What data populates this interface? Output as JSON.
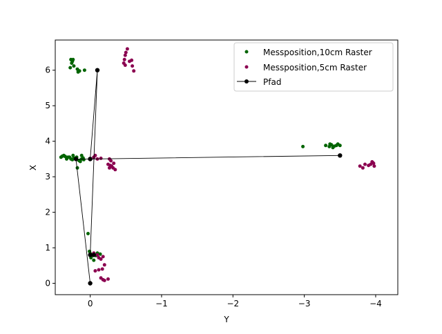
{
  "chart_data": {
    "type": "scatter",
    "xlabel": "Y",
    "ylabel": "X",
    "xlim": [
      0.49,
      -4.31
    ],
    "ylim": [
      -0.32,
      6.85
    ],
    "xticks": [
      0,
      -1,
      -2,
      -3,
      -4
    ],
    "xtick_labels": [
      "0",
      "−1",
      "−2",
      "−3",
      "−4"
    ],
    "yticks": [
      0,
      1,
      2,
      3,
      4,
      5,
      6
    ],
    "ytick_labels": [
      "0",
      "1",
      "2",
      "3",
      "4",
      "5",
      "6"
    ],
    "grid": false,
    "legend_position": "top-right",
    "series": [
      {
        "name": "Messposition,10cm Raster",
        "kind": "scatter",
        "color": "#006400",
        "points": [
          [
            0.27,
            6.3
          ],
          [
            0.24,
            6.3
          ],
          [
            0.25,
            6.25
          ],
          [
            0.26,
            6.2
          ],
          [
            0.23,
            6.12
          ],
          [
            0.28,
            6.07
          ],
          [
            0.18,
            6.03
          ],
          [
            0.15,
            5.98
          ],
          [
            0.08,
            6.0
          ],
          [
            0.17,
            5.95
          ],
          [
            0.41,
            3.55
          ],
          [
            0.39,
            3.58
          ],
          [
            0.37,
            3.6
          ],
          [
            0.35,
            3.57
          ],
          [
            0.33,
            3.5
          ],
          [
            0.31,
            3.55
          ],
          [
            0.29,
            3.55
          ],
          [
            0.27,
            3.5
          ],
          [
            0.25,
            3.48
          ],
          [
            0.23,
            3.53
          ],
          [
            0.21,
            3.51
          ],
          [
            0.19,
            3.55
          ],
          [
            0.16,
            3.46
          ],
          [
            0.14,
            3.43
          ],
          [
            0.12,
            3.5
          ],
          [
            0.1,
            3.53
          ],
          [
            0.18,
            3.25
          ],
          [
            0.12,
            3.6
          ],
          [
            0.24,
            3.6
          ],
          [
            0.09,
            3.48
          ],
          [
            0.03,
            1.4
          ],
          [
            0.01,
            0.9
          ],
          [
            0.0,
            0.84
          ],
          [
            -0.05,
            0.82
          ],
          [
            -0.1,
            0.85
          ],
          [
            -0.14,
            0.82
          ],
          [
            -0.03,
            0.78
          ],
          [
            -0.05,
            0.65
          ],
          [
            -0.01,
            0.72
          ],
          [
            -0.08,
            0.78
          ],
          [
            -2.98,
            3.85
          ],
          [
            -3.3,
            3.88
          ],
          [
            -3.35,
            3.85
          ],
          [
            -3.38,
            3.9
          ],
          [
            -3.42,
            3.86
          ],
          [
            -3.45,
            3.88
          ],
          [
            -3.47,
            3.92
          ],
          [
            -3.5,
            3.88
          ],
          [
            -3.4,
            3.82
          ],
          [
            -3.36,
            3.92
          ]
        ]
      },
      {
        "name": "Messposition,5cm Raster",
        "kind": "scatter",
        "color": "#8b0050",
        "points": [
          [
            -0.52,
            6.6
          ],
          [
            -0.5,
            6.5
          ],
          [
            -0.49,
            6.42
          ],
          [
            -0.48,
            6.3
          ],
          [
            -0.47,
            6.2
          ],
          [
            -0.49,
            6.14
          ],
          [
            -0.55,
            6.25
          ],
          [
            -0.58,
            6.28
          ],
          [
            -0.59,
            6.12
          ],
          [
            -0.61,
            5.98
          ],
          [
            -0.07,
            3.6
          ],
          [
            -0.05,
            3.55
          ],
          [
            -0.1,
            3.5
          ],
          [
            -0.15,
            3.52
          ],
          [
            -0.27,
            3.5
          ],
          [
            -0.29,
            3.45
          ],
          [
            -0.25,
            3.35
          ],
          [
            -0.28,
            3.32
          ],
          [
            -0.3,
            3.3
          ],
          [
            -0.32,
            3.25
          ],
          [
            -0.35,
            3.2
          ],
          [
            -0.27,
            3.25
          ],
          [
            -0.33,
            3.38
          ],
          [
            -0.05,
            0.85
          ],
          [
            -0.1,
            0.8
          ],
          [
            -0.12,
            0.72
          ],
          [
            -0.15,
            0.68
          ],
          [
            -0.18,
            0.75
          ],
          [
            -0.07,
            0.35
          ],
          [
            -0.12,
            0.38
          ],
          [
            -0.17,
            0.4
          ],
          [
            -0.2,
            0.52
          ],
          [
            -0.15,
            0.15
          ],
          [
            -0.18,
            0.1
          ],
          [
            -0.25,
            0.12
          ],
          [
            -0.2,
            0.08
          ],
          [
            -0.03,
            0.8
          ],
          [
            -3.78,
            3.3
          ],
          [
            -3.82,
            3.25
          ],
          [
            -3.85,
            3.35
          ],
          [
            -3.9,
            3.32
          ],
          [
            -3.93,
            3.35
          ],
          [
            -3.96,
            3.4
          ],
          [
            -3.97,
            3.38
          ],
          [
            -3.98,
            3.3
          ],
          [
            -3.95,
            3.42
          ]
        ]
      },
      {
        "name": "Pfad",
        "kind": "line",
        "color": "#000000",
        "points": [
          [
            0.0,
            0.0
          ],
          [
            0.2,
            3.5
          ],
          [
            0.0,
            3.5
          ],
          [
            -3.5,
            3.6
          ],
          [
            0.0,
            3.5
          ],
          [
            -0.1,
            6.0
          ],
          [
            0.0,
            0.8
          ],
          [
            -0.05,
            0.8
          ]
        ]
      }
    ]
  }
}
